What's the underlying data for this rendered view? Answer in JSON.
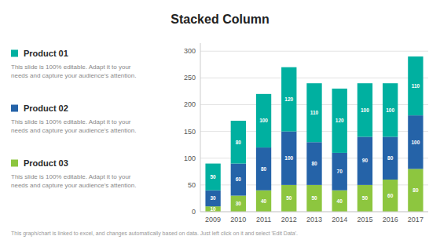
{
  "chart_data": {
    "type": "bar",
    "stacked": true,
    "title": "Stacked Column",
    "subtitle": "This slide is 100% editable. Adapt it to your\nneeds and capture your audience's attention.",
    "annotations": [
      "This graph/chart is linked to excel, and changes automatically based on data. Just left click on it and select 'Edit Data'."
    ],
    "categories": [
      "2009",
      "2010",
      "2011",
      "2012",
      "2013",
      "2014",
      "2015",
      "2016",
      "2017"
    ],
    "series": [
      {
        "name": "Product 03",
        "color": "#8dc63f",
        "values": [
          10,
          30,
          40,
          50,
          50,
          40,
          50,
          60,
          80
        ]
      },
      {
        "name": "Product 02",
        "color": "#2563a8",
        "values": [
          30,
          60,
          80,
          100,
          80,
          70,
          90,
          80,
          100
        ]
      },
      {
        "name": "Product 01",
        "color": "#00b0a0",
        "values": [
          50,
          80,
          100,
          120,
          110,
          120,
          100,
          100,
          110
        ]
      }
    ],
    "ylim": [
      0,
      315
    ],
    "yticks": [
      0,
      50,
      100,
      150,
      200,
      250,
      300
    ],
    "grid": true,
    "data_labels": true,
    "legend": "left"
  }
}
